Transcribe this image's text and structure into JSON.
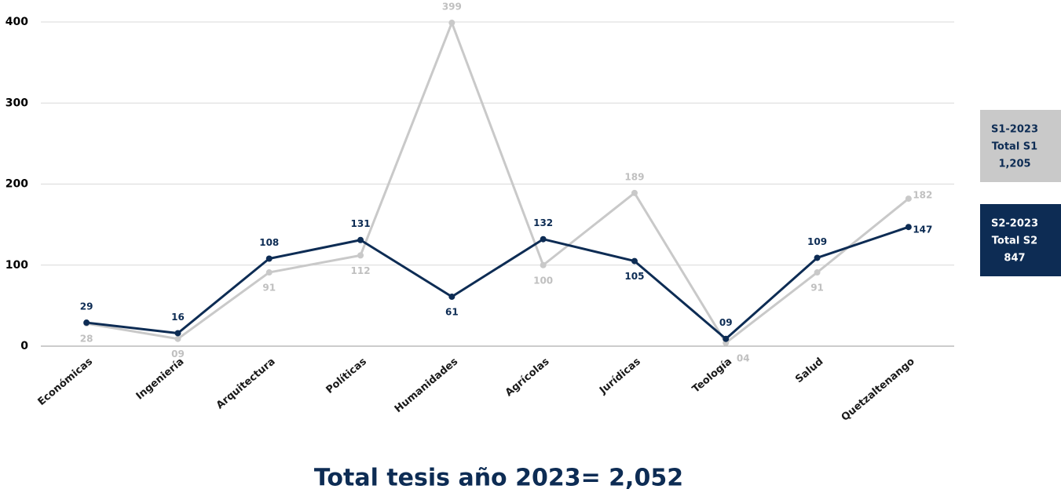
{
  "chart_data": {
    "type": "line",
    "caption": "Total tesis año 2023= 2,052",
    "categories": [
      "Económicas",
      "Ingeniería",
      "Arquitectura",
      "Políticas",
      "Humanidades",
      "Agrícolas",
      "Jurídicas",
      "Teología",
      "Salud",
      "Quetzaltenango"
    ],
    "series": [
      {
        "name": "S1-2023",
        "color": "#c9c9c9",
        "total_label": "Total S1",
        "total": "1,205",
        "values": [
          28,
          9,
          91,
          112,
          399,
          100,
          189,
          4,
          91,
          182
        ],
        "value_labels": [
          "28",
          "09",
          "91",
          "112",
          "399",
          "100",
          "189",
          "04",
          "91",
          "182"
        ]
      },
      {
        "name": "S2-2023",
        "color": "#0d2c54",
        "total_label": "Total S2",
        "total": "847",
        "values": [
          29,
          16,
          108,
          131,
          61,
          132,
          105,
          9,
          109,
          147
        ],
        "value_labels": [
          "29",
          "16",
          "108",
          "131",
          "61",
          "132",
          "105",
          "09",
          "109",
          "147"
        ]
      }
    ],
    "ylim": [
      0,
      400
    ],
    "yticks": [
      0,
      100,
      200,
      300,
      400
    ],
    "grid": true
  }
}
